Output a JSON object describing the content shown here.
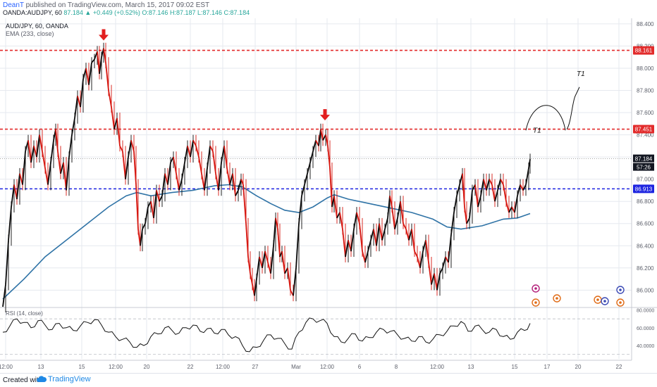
{
  "header": {
    "author": "DeanT",
    "published": " published on TradingView.com, March 15, 2017 09:02 EST",
    "symbol": "OANDA:AUDJPY, 60",
    "change": "87.184 ▲ +0.449 (+0.52%)",
    "open": "O:87.146",
    "high": "H:87.187",
    "low": "L:87.146",
    "close": "C:87.184"
  },
  "legend": {
    "pair": "AUD/JPY, 60, OANDA",
    "ema": "EMA (233, close)"
  },
  "colors": {
    "bull": "#0b0b0b",
    "bear": "#d6160f",
    "ema": "#2f73a6",
    "resistance": "#e22b2b",
    "support": "#1d24e0",
    "rsi": "#111111",
    "axis_text": "#5d606b",
    "grid": "#e6e9ef",
    "brand": "#1e88e5"
  },
  "chart_data": {
    "type": "line",
    "title": "AUD/JPY, 60, OANDA",
    "x_ticks": [
      "12:00",
      "13",
      "15",
      "12:00",
      "20",
      "22",
      "12:00",
      "27",
      "Mar",
      "12:00",
      "6",
      "8",
      "12:00",
      "13",
      "15",
      "17",
      "20",
      "22"
    ],
    "y_ticks": [
      "88.400",
      "88.200",
      "88.000",
      "87.800",
      "87.600",
      "87.400",
      "87.200",
      "87.000",
      "86.800",
      "86.600",
      "86.400",
      "86.200",
      "86.000"
    ],
    "ylim": [
      85.85,
      88.45
    ],
    "price_path": [
      [
        0,
        85.85
      ],
      [
        4,
        86.05
      ],
      [
        8,
        86.45
      ],
      [
        12,
        86.75
      ],
      [
        16,
        86.95
      ],
      [
        20,
        86.82
      ],
      [
        24,
        87.05
      ],
      [
        28,
        86.95
      ],
      [
        32,
        87.25
      ],
      [
        36,
        87.35
      ],
      [
        40,
        87.15
      ],
      [
        44,
        87.3
      ],
      [
        48,
        87.2
      ],
      [
        52,
        87.4
      ],
      [
        56,
        87.25
      ],
      [
        60,
        87.1
      ],
      [
        64,
        86.95
      ],
      [
        68,
        87.15
      ],
      [
        72,
        87.35
      ],
      [
        75,
        87.45
      ],
      [
        78,
        87.25
      ],
      [
        82,
        87.05
      ],
      [
        86,
        87.15
      ],
      [
        90,
        86.9
      ],
      [
        94,
        87.2
      ],
      [
        98,
        87.4
      ],
      [
        102,
        87.55
      ],
      [
        106,
        87.75
      ],
      [
        110,
        87.65
      ],
      [
        114,
        87.9
      ],
      [
        118,
        88.0
      ],
      [
        122,
        87.85
      ],
      [
        126,
        88.05
      ],
      [
        130,
        88.08
      ],
      [
        134,
        88.15
      ],
      [
        137,
        87.95
      ],
      [
        140,
        88.1
      ],
      [
        143,
        88.18
      ],
      [
        146,
        88.05
      ],
      [
        150,
        87.8
      ],
      [
        154,
        87.65
      ],
      [
        158,
        87.45
      ],
      [
        162,
        87.55
      ],
      [
        166,
        87.3
      ],
      [
        170,
        87.25
      ],
      [
        174,
        87.0
      ],
      [
        178,
        87.2
      ],
      [
        182,
        87.35
      ],
      [
        186,
        87.25
      ],
      [
        189,
        86.95
      ],
      [
        192,
        86.55
      ],
      [
        195,
        86.4
      ],
      [
        198,
        86.55
      ],
      [
        202,
        86.6
      ],
      [
        206,
        86.75
      ],
      [
        210,
        86.8
      ],
      [
        214,
        86.65
      ],
      [
        218,
        86.9
      ],
      [
        222,
        86.8
      ],
      [
        226,
        86.85
      ],
      [
        230,
        87.05
      ],
      [
        234,
        86.95
      ],
      [
        238,
        87.15
      ],
      [
        242,
        87.2
      ],
      [
        246,
        87.05
      ],
      [
        250,
        86.9
      ],
      [
        254,
        87.0
      ],
      [
        258,
        87.15
      ],
      [
        262,
        87.3
      ],
      [
        266,
        87.2
      ],
      [
        270,
        87.35
      ],
      [
        274,
        87.3
      ],
      [
        278,
        87.2
      ],
      [
        282,
        87.05
      ],
      [
        286,
        86.9
      ],
      [
        290,
        87.1
      ],
      [
        294,
        87.3
      ],
      [
        298,
        87.25
      ],
      [
        302,
        87.05
      ],
      [
        306,
        86.9
      ],
      [
        310,
        87.15
      ],
      [
        314,
        87.3
      ],
      [
        318,
        87.1
      ],
      [
        322,
        86.95
      ],
      [
        326,
        87.05
      ],
      [
        330,
        86.85
      ],
      [
        334,
        86.9
      ],
      [
        338,
        87.0
      ],
      [
        341,
        86.95
      ],
      [
        345,
        86.6
      ],
      [
        348,
        86.3
      ],
      [
        351,
        86.15
      ],
      [
        354,
        86.05
      ],
      [
        357,
        85.95
      ],
      [
        360,
        86.1
      ],
      [
        364,
        86.3
      ],
      [
        368,
        86.2
      ],
      [
        372,
        86.35
      ],
      [
        376,
        86.25
      ],
      [
        380,
        86.15
      ],
      [
        384,
        86.4
      ],
      [
        387,
        86.65
      ],
      [
        390,
        86.55
      ],
      [
        393,
        86.3
      ],
      [
        396,
        86.35
      ],
      [
        400,
        86.15
      ],
      [
        404,
        86.2
      ],
      [
        408,
        86.0
      ],
      [
        412,
        85.95
      ],
      [
        416,
        86.2
      ],
      [
        420,
        86.6
      ],
      [
        424,
        86.85
      ],
      [
        428,
        86.95
      ],
      [
        432,
        87.05
      ],
      [
        436,
        87.15
      ],
      [
        440,
        87.25
      ],
      [
        444,
        87.35
      ],
      [
        448,
        87.3
      ],
      [
        451,
        87.45
      ],
      [
        454,
        87.35
      ],
      [
        458,
        87.4
      ],
      [
        461,
        87.3
      ],
      [
        464,
        87.1
      ],
      [
        467,
        86.75
      ],
      [
        470,
        86.85
      ],
      [
        474,
        86.65
      ],
      [
        478,
        86.7
      ],
      [
        482,
        86.55
      ],
      [
        486,
        86.3
      ],
      [
        490,
        86.45
      ],
      [
        494,
        86.35
      ],
      [
        498,
        86.55
      ],
      [
        502,
        86.7
      ],
      [
        506,
        86.6
      ],
      [
        510,
        86.35
      ],
      [
        514,
        86.25
      ],
      [
        518,
        86.35
      ],
      [
        522,
        86.45
      ],
      [
        526,
        86.55
      ],
      [
        530,
        86.4
      ],
      [
        534,
        86.6
      ],
      [
        538,
        86.45
      ],
      [
        542,
        86.55
      ],
      [
        546,
        86.65
      ],
      [
        549,
        86.85
      ],
      [
        552,
        86.75
      ],
      [
        556,
        86.55
      ],
      [
        560,
        86.65
      ],
      [
        564,
        86.8
      ],
      [
        568,
        86.6
      ],
      [
        572,
        86.55
      ],
      [
        576,
        86.45
      ],
      [
        580,
        86.55
      ],
      [
        584,
        86.35
      ],
      [
        588,
        86.3
      ],
      [
        592,
        86.2
      ],
      [
        596,
        86.35
      ],
      [
        600,
        86.45
      ],
      [
        604,
        86.25
      ],
      [
        608,
        86.05
      ],
      [
        612,
        86.15
      ],
      [
        616,
        86.0
      ],
      [
        620,
        86.15
      ],
      [
        624,
        86.2
      ],
      [
        628,
        86.3
      ],
      [
        632,
        86.25
      ],
      [
        636,
        86.5
      ],
      [
        640,
        86.7
      ],
      [
        644,
        86.85
      ],
      [
        648,
        86.95
      ],
      [
        652,
        87.05
      ],
      [
        655,
        86.75
      ],
      [
        658,
        86.6
      ],
      [
        662,
        86.65
      ],
      [
        666,
        86.9
      ],
      [
        670,
        86.95
      ],
      [
        674,
        86.75
      ],
      [
        678,
        86.85
      ],
      [
        682,
        87.0
      ],
      [
        686,
        86.9
      ],
      [
        690,
        87.0
      ],
      [
        694,
        86.95
      ],
      [
        698,
        86.8
      ],
      [
        702,
        86.9
      ],
      [
        706,
        87.0
      ],
      [
        710,
        86.95
      ],
      [
        714,
        86.8
      ],
      [
        718,
        86.7
      ],
      [
        722,
        86.75
      ],
      [
        726,
        86.7
      ],
      [
        730,
        86.85
      ],
      [
        734,
        86.95
      ],
      [
        738,
        86.9
      ],
      [
        742,
        86.95
      ],
      [
        746,
        87.1
      ],
      [
        748,
        87.18
      ]
    ],
    "ema_path": [
      [
        0,
        85.92
      ],
      [
        30,
        86.1
      ],
      [
        60,
        86.3
      ],
      [
        90,
        86.45
      ],
      [
        120,
        86.6
      ],
      [
        150,
        86.75
      ],
      [
        175,
        86.85
      ],
      [
        190,
        86.88
      ],
      [
        210,
        86.85
      ],
      [
        240,
        86.88
      ],
      [
        270,
        86.9
      ],
      [
        300,
        86.94
      ],
      [
        320,
        86.95
      ],
      [
        340,
        86.93
      ],
      [
        360,
        86.85
      ],
      [
        380,
        86.78
      ],
      [
        400,
        86.72
      ],
      [
        420,
        86.7
      ],
      [
        440,
        86.75
      ],
      [
        460,
        86.83
      ],
      [
        470,
        86.86
      ],
      [
        490,
        86.82
      ],
      [
        520,
        86.78
      ],
      [
        550,
        86.74
      ],
      [
        580,
        86.7
      ],
      [
        610,
        86.64
      ],
      [
        630,
        86.57
      ],
      [
        650,
        86.55
      ],
      [
        680,
        86.58
      ],
      [
        710,
        86.64
      ],
      [
        730,
        86.65
      ],
      [
        748,
        86.69
      ]
    ],
    "levels": [
      {
        "label": "88.161",
        "value": 88.161,
        "color": "#e22b2b"
      },
      {
        "label": "87.451",
        "value": 87.451,
        "color": "#e22b2b"
      },
      {
        "label": "86.913",
        "value": 86.913,
        "color": "#1d24e0"
      }
    ],
    "last_price": "87.184",
    "countdown": "57:26",
    "annotations": [
      "T1",
      "T1"
    ],
    "rsi": {
      "label": "RSI (14, close)",
      "y_ticks": [
        "80.0000",
        "60.0000",
        "40.0000"
      ],
      "ylim": [
        25,
        82
      ],
      "values": [
        [
          0,
          55
        ],
        [
          10,
          62
        ],
        [
          20,
          70
        ],
        [
          30,
          66
        ],
        [
          40,
          60
        ],
        [
          50,
          68
        ],
        [
          60,
          63
        ],
        [
          70,
          58
        ],
        [
          80,
          65
        ],
        [
          90,
          60
        ],
        [
          100,
          57
        ],
        [
          110,
          62
        ],
        [
          120,
          66
        ],
        [
          130,
          69
        ],
        [
          140,
          63
        ],
        [
          150,
          55
        ],
        [
          160,
          50
        ],
        [
          170,
          47
        ],
        [
          180,
          44
        ],
        [
          190,
          38
        ],
        [
          200,
          40
        ],
        [
          210,
          50
        ],
        [
          220,
          53
        ],
        [
          230,
          60
        ],
        [
          240,
          57
        ],
        [
          250,
          54
        ],
        [
          260,
          60
        ],
        [
          270,
          63
        ],
        [
          280,
          56
        ],
        [
          290,
          59
        ],
        [
          300,
          54
        ],
        [
          310,
          58
        ],
        [
          320,
          52
        ],
        [
          330,
          50
        ],
        [
          340,
          40
        ],
        [
          350,
          33
        ],
        [
          360,
          38
        ],
        [
          370,
          46
        ],
        [
          380,
          52
        ],
        [
          390,
          48
        ],
        [
          400,
          42
        ],
        [
          410,
          36
        ],
        [
          420,
          55
        ],
        [
          430,
          66
        ],
        [
          440,
          70
        ],
        [
          450,
          68
        ],
        [
          460,
          65
        ],
        [
          470,
          50
        ],
        [
          480,
          44
        ],
        [
          490,
          48
        ],
        [
          500,
          53
        ],
        [
          510,
          45
        ],
        [
          520,
          49
        ],
        [
          530,
          55
        ],
        [
          540,
          58
        ],
        [
          550,
          56
        ],
        [
          560,
          52
        ],
        [
          570,
          48
        ],
        [
          580,
          45
        ],
        [
          590,
          50
        ],
        [
          600,
          44
        ],
        [
          610,
          47
        ],
        [
          620,
          52
        ],
        [
          630,
          56
        ],
        [
          640,
          62
        ],
        [
          650,
          67
        ],
        [
          660,
          56
        ],
        [
          670,
          62
        ],
        [
          680,
          58
        ],
        [
          690,
          55
        ],
        [
          700,
          58
        ],
        [
          710,
          50
        ],
        [
          720,
          47
        ],
        [
          730,
          55
        ],
        [
          740,
          57
        ],
        [
          748,
          65
        ]
      ]
    }
  }
}
